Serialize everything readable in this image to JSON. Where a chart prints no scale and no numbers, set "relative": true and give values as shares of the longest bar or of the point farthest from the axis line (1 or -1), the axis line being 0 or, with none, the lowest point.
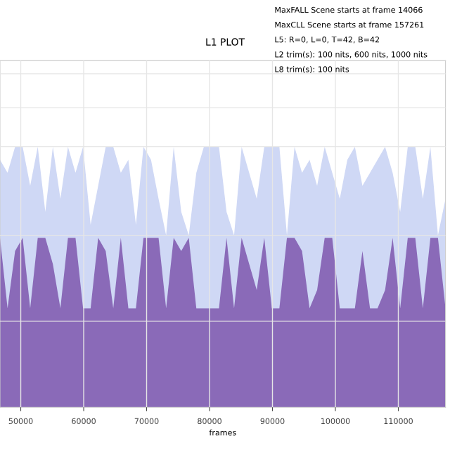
{
  "chart_data": {
    "type": "area",
    "title": "L1 PLOT",
    "xlabel": "frames",
    "relative": true,
    "annotations": [
      "MaxFALL Scene starts at frame 14066",
      "MaxCLL Scene starts at frame 157261",
      "L5: R=0, L=0, T=42, B=42",
      "L2 trim(s): 100 nits, 600 nits, 1000 nits",
      "L8 trim(s): 100 nits"
    ],
    "x": [
      46700,
      47900,
      49100,
      50300,
      51500,
      52700,
      53900,
      55100,
      56300,
      57500,
      58700,
      59900,
      61100,
      62300,
      63500,
      64700,
      65900,
      67100,
      68300,
      69500,
      70700,
      71900,
      73100,
      74300,
      75500,
      76700,
      77900,
      79100,
      80300,
      81500,
      82700,
      83900,
      85100,
      86300,
      87500,
      88700,
      89900,
      91100,
      92300,
      93500,
      94700,
      95900,
      97100,
      98300,
      99500,
      100700,
      101900,
      103100,
      104300,
      105500,
      106700,
      107900,
      109100,
      110300,
      111500,
      112700,
      113900,
      115100,
      116300,
      117500
    ],
    "series": [
      {
        "color": "#cfd8f5",
        "values": [
          0.95,
          0.9,
          1,
          1,
          0.85,
          1,
          0.75,
          1,
          0.8,
          1,
          0.9,
          1,
          0.7,
          0.85,
          1,
          1,
          0.9,
          0.95,
          0.7,
          1,
          0.95,
          0.8,
          0.66,
          1,
          0.75,
          0.66,
          0.9,
          1,
          1,
          1,
          0.75,
          0.66,
          1,
          0.9,
          0.8,
          1,
          1,
          1,
          0.66,
          1,
          0.9,
          0.95,
          0.85,
          1,
          0.9,
          0.8,
          0.95,
          1,
          0.85,
          0.9,
          0.95,
          1,
          0.9,
          0.75,
          1,
          1,
          0.8,
          1,
          0.66,
          0.8
        ]
      },
      {
        "color": "#8a6ab8",
        "values": [
          0.65,
          0.38,
          0.6,
          0.65,
          0.38,
          0.65,
          0.65,
          0.55,
          0.38,
          0.65,
          0.65,
          0.38,
          0.38,
          0.65,
          0.6,
          0.38,
          0.65,
          0.38,
          0.38,
          0.65,
          0.65,
          0.65,
          0.38,
          0.65,
          0.6,
          0.65,
          0.38,
          0.38,
          0.38,
          0.38,
          0.65,
          0.38,
          0.65,
          0.55,
          0.45,
          0.65,
          0.38,
          0.38,
          0.65,
          0.65,
          0.6,
          0.38,
          0.45,
          0.65,
          0.65,
          0.38,
          0.38,
          0.38,
          0.6,
          0.38,
          0.38,
          0.45,
          0.65,
          0.38,
          0.65,
          0.65,
          0.38,
          0.65,
          0.65,
          0.38
        ]
      }
    ],
    "xlim": [
      46700,
      117500
    ],
    "xticks": [
      50000,
      60000,
      70000,
      80000,
      90000,
      100000,
      110000
    ],
    "grid": true
  }
}
